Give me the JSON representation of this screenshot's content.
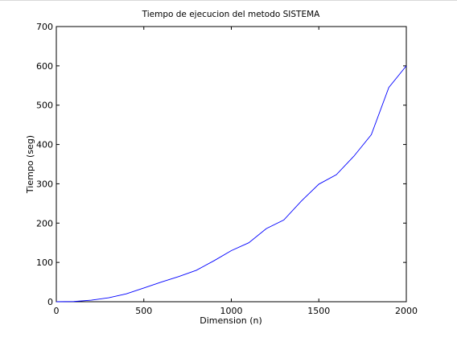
{
  "chart_data": {
    "type": "line",
    "title": "Tiempo de ejecucion del metodo SISTEMA",
    "xlabel": "Dimension (n)",
    "ylabel": "Tiempo (seg)",
    "xlim": [
      0,
      2000
    ],
    "ylim": [
      0,
      700
    ],
    "xticks": [
      0,
      500,
      1000,
      1500,
      2000
    ],
    "yticks": [
      0,
      100,
      200,
      300,
      400,
      500,
      600,
      700
    ],
    "grid": false,
    "line_color": "#0000ff",
    "series": [
      {
        "x": [
          0,
          100,
          200,
          300,
          400,
          500,
          600,
          700,
          800,
          900,
          1000,
          1100,
          1200,
          1300,
          1400,
          1500,
          1600,
          1700,
          1800,
          1900,
          2000
        ],
        "y": [
          0,
          0.5,
          4,
          10,
          20,
          35,
          50,
          64,
          80,
          104,
          130,
          150,
          186,
          208,
          256,
          299,
          323,
          370,
          425,
          545,
          600
        ]
      }
    ]
  }
}
